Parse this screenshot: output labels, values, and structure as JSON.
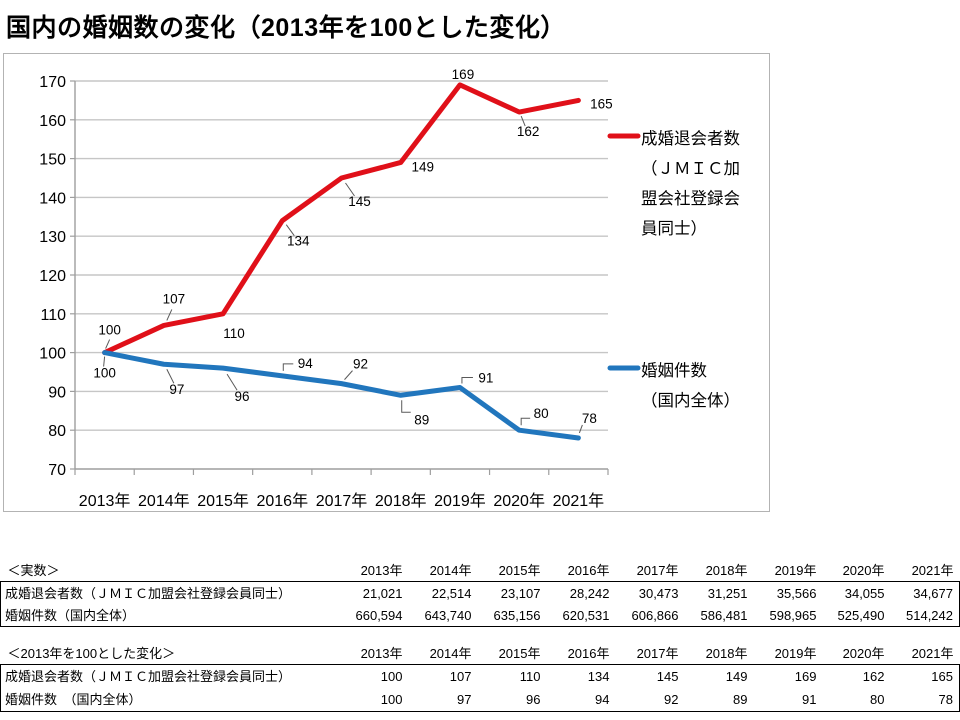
{
  "title": "国内の婚姻数の変化（2013年を100とした変化）",
  "colors": {
    "series_red": "#e01019",
    "series_blue": "#2176bd",
    "grid": "#c6c6c6",
    "axis": "#9e9e9e",
    "chart_border": "#b3b3b3",
    "table_border": "#000000",
    "leader_line": "#595959"
  },
  "chart_data": {
    "type": "line",
    "x": [
      "2013年",
      "2014年",
      "2015年",
      "2016年",
      "2017年",
      "2018年",
      "2019年",
      "2020年",
      "2021年"
    ],
    "series": [
      {
        "name": "成婚退会者数（ＪＭＩＣ加盟会社登録会員同士）",
        "legend_lines": [
          "成婚退会者数",
          "（ＪＭＩＣ加",
          "盟会社登録会",
          "員同士）"
        ],
        "color": "#e01019",
        "values": [
          100,
          107,
          110,
          134,
          145,
          149,
          169,
          162,
          165
        ]
      },
      {
        "name": "婚姻件数（国内全体）",
        "legend_lines": [
          "婚姻件数",
          "（国内全体）"
        ],
        "color": "#2176bd",
        "values": [
          100,
          97,
          96,
          94,
          92,
          89,
          91,
          80,
          78
        ]
      }
    ],
    "ylim": [
      70,
      170
    ],
    "ytick_step": 10,
    "grid": true,
    "legend_position": "right",
    "data_labels": true,
    "xlabel": "",
    "ylabel": ""
  },
  "tables": [
    {
      "caption": "＜実数＞",
      "years": [
        "2013年",
        "2014年",
        "2015年",
        "2016年",
        "2017年",
        "2018年",
        "2019年",
        "2020年",
        "2021年"
      ],
      "rows": [
        {
          "label": "成婚退会者数（ＪＭＩＣ加盟会社登録会員同士）",
          "values": [
            "21,021",
            "22,514",
            "23,107",
            "28,242",
            "30,473",
            "31,251",
            "35,566",
            "34,055",
            "34,677"
          ]
        },
        {
          "label": "婚姻件数（国内全体）",
          "values": [
            "660,594",
            "643,740",
            "635,156",
            "620,531",
            "606,866",
            "586,481",
            "598,965",
            "525,490",
            "514,242"
          ]
        }
      ]
    },
    {
      "caption": "＜2013年を100とした変化＞",
      "years": [
        "2013年",
        "2014年",
        "2015年",
        "2016年",
        "2017年",
        "2018年",
        "2019年",
        "2020年",
        "2021年"
      ],
      "rows": [
        {
          "label": "成婚退会者数（ＪＭＩＣ加盟会社登録会員同士）",
          "values": [
            "100",
            "107",
            "110",
            "134",
            "145",
            "149",
            "169",
            "162",
            "165"
          ]
        },
        {
          "label": "婚姻件数　（国内全体）",
          "values": [
            "100",
            "97",
            "96",
            "94",
            "92",
            "89",
            "91",
            "80",
            "78"
          ]
        }
      ]
    }
  ]
}
